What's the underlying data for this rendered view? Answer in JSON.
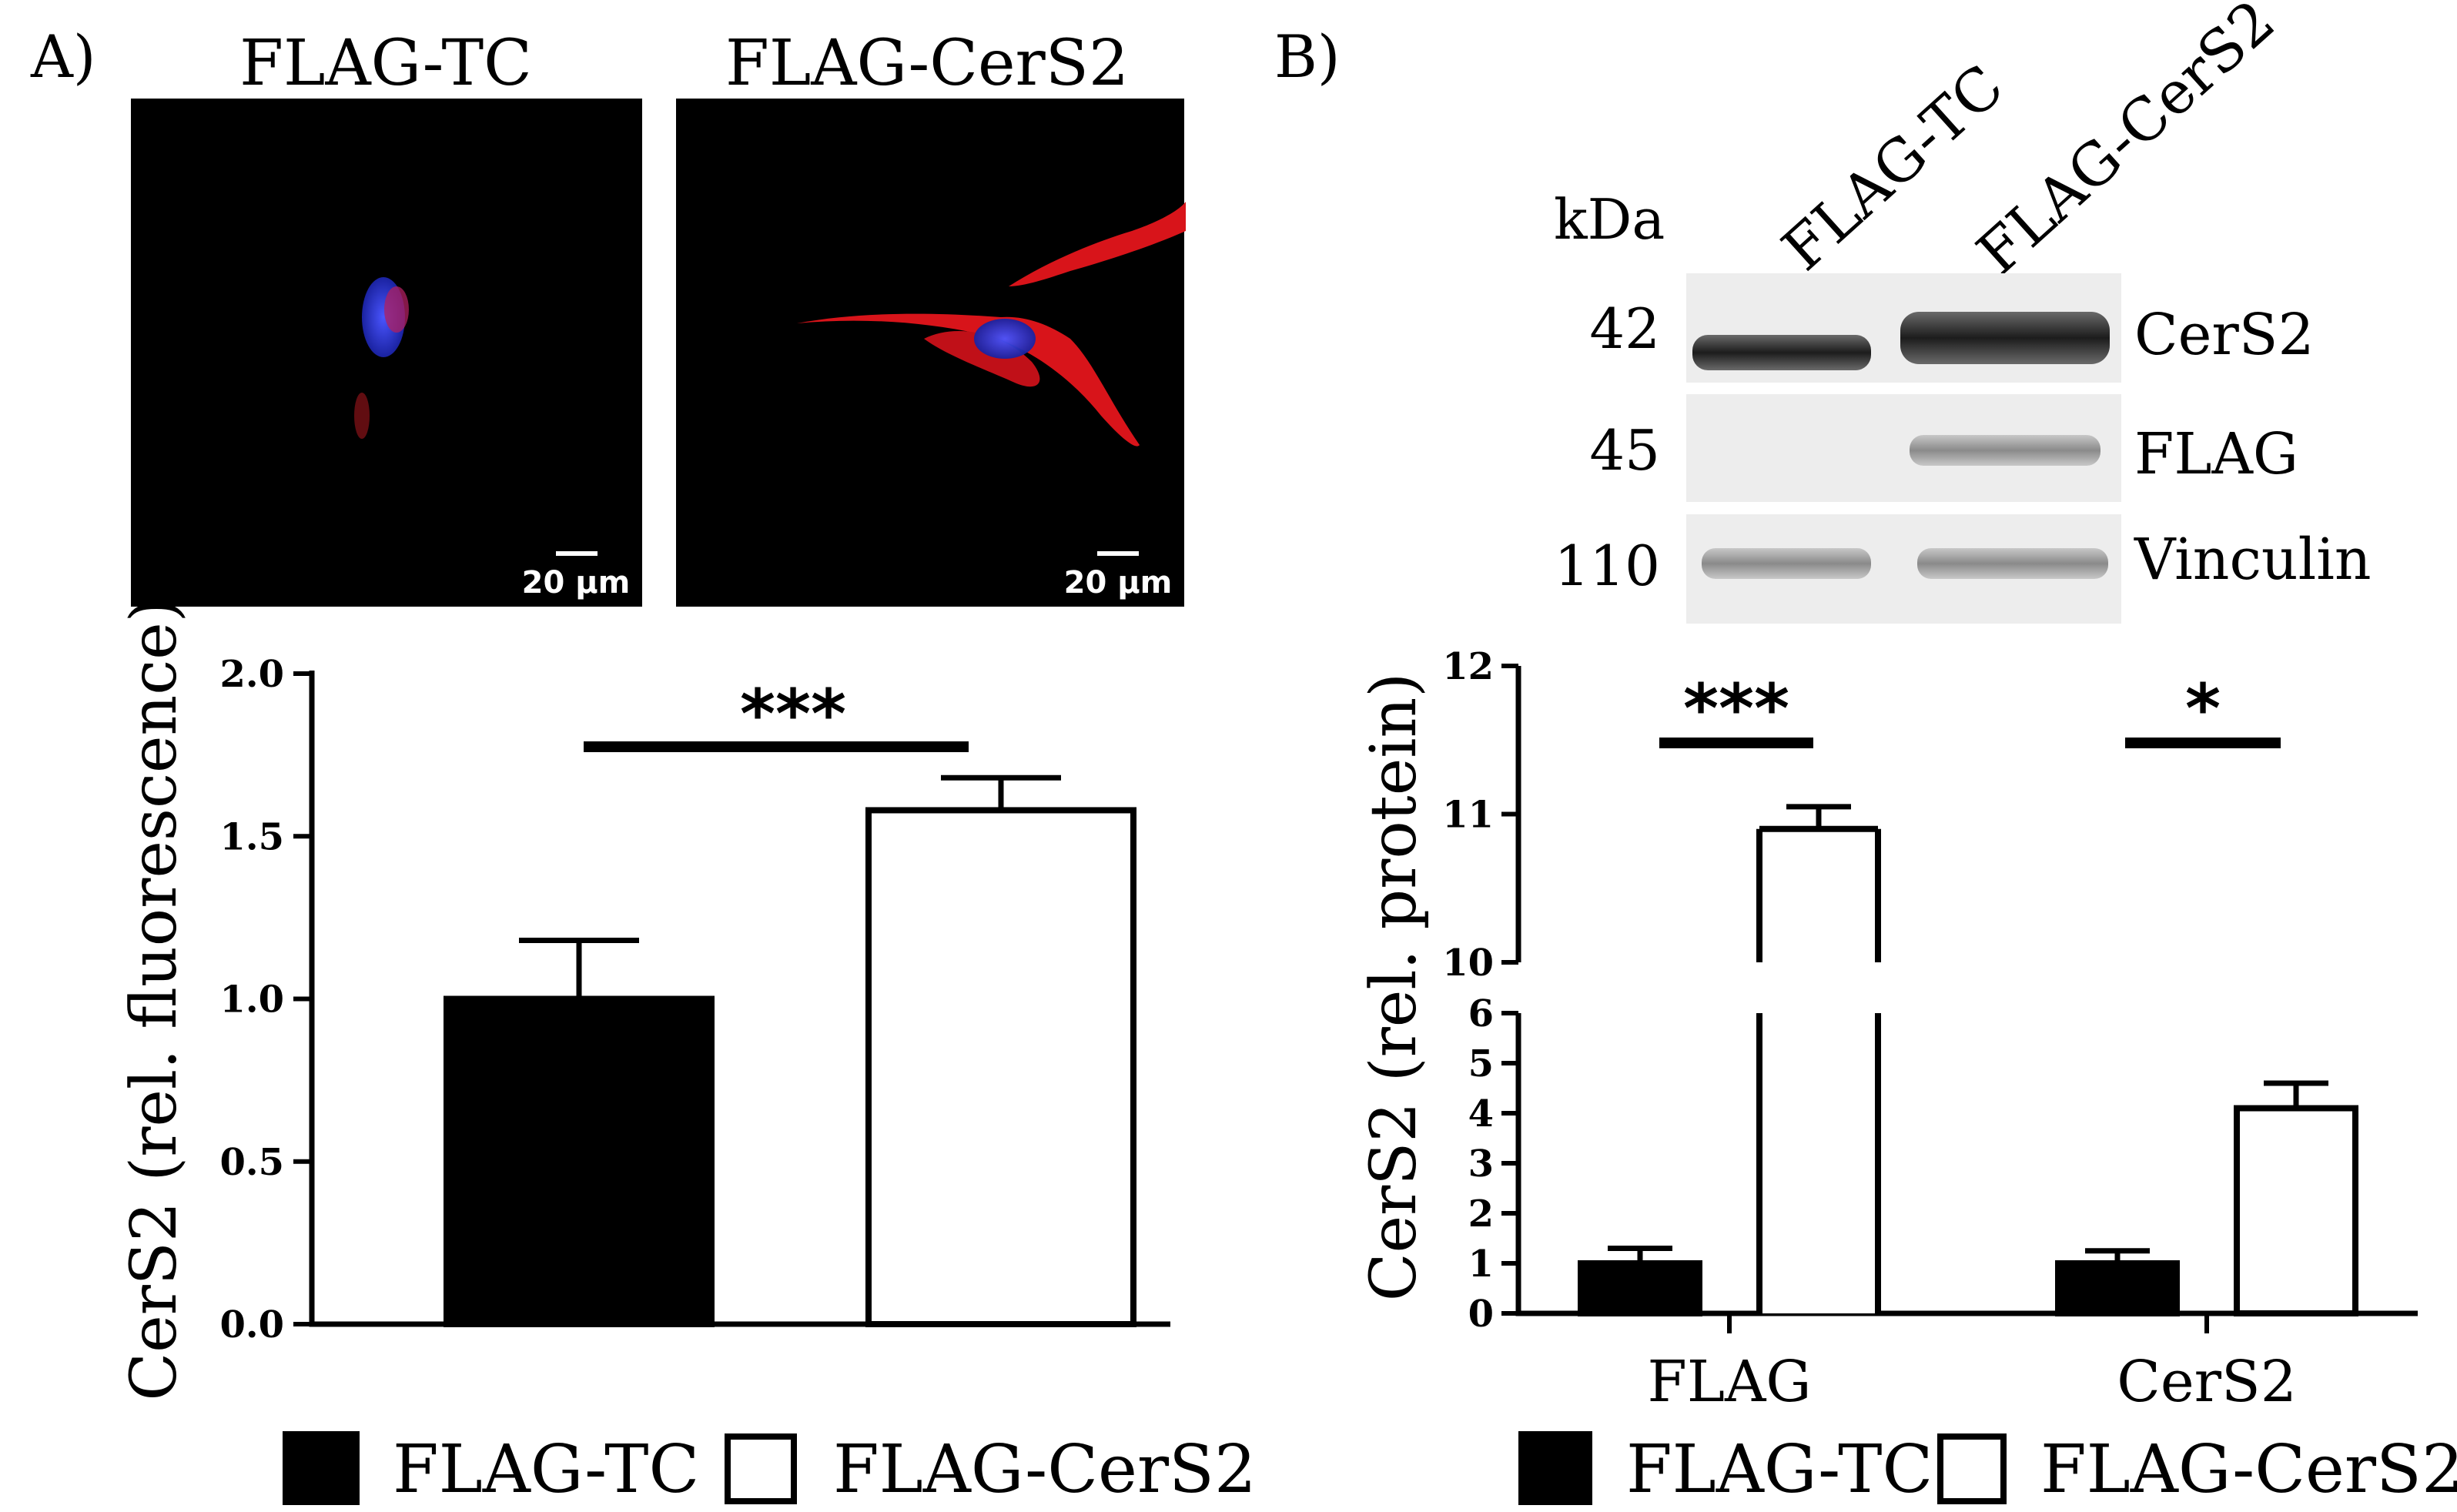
{
  "panels": {
    "a_label": "A)",
    "b_label": "B)"
  },
  "micrographs": [
    {
      "title": "FLAG-TC",
      "scale_bar": "20 µm"
    },
    {
      "title": "FLAG-CerS2",
      "scale_bar": "20 µm"
    }
  ],
  "western_blot": {
    "unit": "kDa",
    "lanes": [
      "FLAG-TC",
      "FLAG-CerS2"
    ],
    "rows": [
      {
        "mw": "42",
        "label": "CerS2"
      },
      {
        "mw": "45",
        "label": "FLAG"
      },
      {
        "mw": "110",
        "label": "Vinculin"
      }
    ]
  },
  "colors": {
    "flag_tc": "#000000",
    "flag_cers2": "#ffffff",
    "red_stain": "#e0161a",
    "blue_stain": "#2a35d8",
    "blot_bg": "#ededed"
  },
  "chart_data": [
    {
      "type": "bar",
      "ylabel": "CerS2 (rel. fluorescence)",
      "ylim": [
        0,
        2.0
      ],
      "yticks": [
        "0.0",
        "0.5",
        "1.0",
        "1.5",
        "2.0"
      ],
      "series": [
        {
          "name": "FLAG-TC",
          "values": [
            1.0
          ],
          "errors": [
            0.18
          ]
        },
        {
          "name": "FLAG-CerS2",
          "values": [
            1.58
          ],
          "errors": [
            0.1
          ]
        }
      ],
      "significance": [
        "***"
      ],
      "legend": [
        "FLAG-TC",
        "FLAG-CerS2"
      ],
      "legend_position": "bottom"
    },
    {
      "type": "bar",
      "ylabel": "CerS2 (rel. protein)",
      "categories": [
        "FLAG",
        "CerS2"
      ],
      "y_axis_break": {
        "lower": [
          0,
          6
        ],
        "upper": [
          10,
          12
        ]
      },
      "yticks_lower": [
        "0",
        "1",
        "2",
        "3",
        "4",
        "5",
        "6"
      ],
      "yticks_upper": [
        "10",
        "11",
        "12"
      ],
      "series": [
        {
          "name": "FLAG-TC",
          "values": [
            1.0,
            1.0
          ],
          "errors": [
            0.3,
            0.25
          ]
        },
        {
          "name": "FLAG-CerS2",
          "values": [
            10.9,
            4.1
          ],
          "errors": [
            0.15,
            0.5
          ]
        }
      ],
      "significance": [
        "***",
        "*"
      ],
      "legend": [
        "FLAG-TC",
        "FLAG-CerS2"
      ],
      "legend_position": "bottom"
    }
  ]
}
